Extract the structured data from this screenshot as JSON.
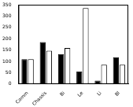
{
  "chart_data": {
    "type": "bar",
    "categories": [
      "Comm",
      "Chassis",
      "Bi",
      "Le",
      "Li",
      "Bl"
    ],
    "series": [
      {
        "color": "#000000",
        "values": [
          110,
          185,
          132,
          56,
          15,
          118
        ]
      },
      {
        "color": "#ffffff",
        "values": [
          110,
          147,
          159,
          335,
          85,
          85
        ]
      }
    ],
    "ylim": [
      0,
      350
    ],
    "yticks": [
      0,
      50,
      100,
      150,
      200,
      250,
      300,
      350
    ],
    "grid": false
  }
}
